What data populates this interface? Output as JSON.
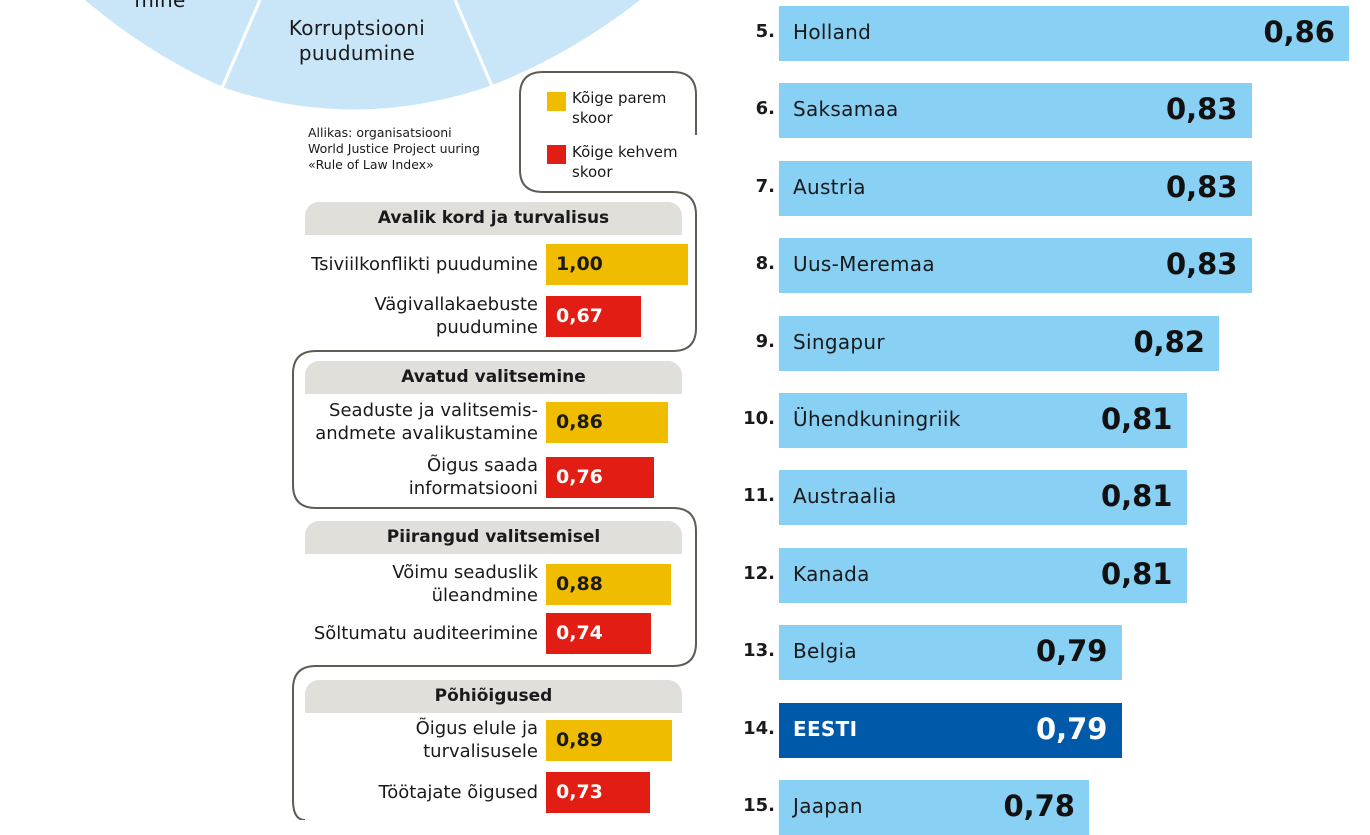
{
  "wheel": {
    "labels": [
      "mine",
      "Korruptsiooni\npuudumine"
    ],
    "fill": "#c9e6f8",
    "line": "#ffffff"
  },
  "source": "Allikas: organisatsiooni\nWorld Justice Project uuring\n«Rule of Law Index»",
  "legend": {
    "best": {
      "label": "Kõige parem\nskoor",
      "color": "#f0bc00"
    },
    "worst": {
      "label": "Kõige kehvem\nskoor",
      "color": "#e21d13"
    }
  },
  "colors": {
    "country_bar": "#88d0f4",
    "highlight_bar": "#0059a9",
    "outline": "#5f5b55"
  },
  "chart_data": [
    {
      "type": "bar",
      "orientation": "horizontal",
      "groups": [
        {
          "name": "Avalik kord ja turvalisus",
          "factors": [
            {
              "label": "Tsiviilkonflikti puudumine",
              "value": 1.0,
              "display": "1,00",
              "kind": "best"
            },
            {
              "label": "Vägivallakaebuste\npuudumine",
              "value": 0.67,
              "display": "0,67",
              "kind": "worst"
            }
          ]
        },
        {
          "name": "Avatud valitsemine",
          "factors": [
            {
              "label": "Seaduste ja valitsemis-\nandmete avalikustamine",
              "value": 0.86,
              "display": "0,86",
              "kind": "best"
            },
            {
              "label": "Õigus saada\ninformatsiooni",
              "value": 0.76,
              "display": "0,76",
              "kind": "worst"
            }
          ]
        },
        {
          "name": "Piirangud valitsemisel",
          "factors": [
            {
              "label": "Võimu seaduslik\nüleandmine",
              "value": 0.88,
              "display": "0,88",
              "kind": "best"
            },
            {
              "label": "Sõltumatu auditeerimine",
              "value": 0.74,
              "display": "0,74",
              "kind": "worst"
            }
          ]
        },
        {
          "name": "Põhiõigused",
          "factors": [
            {
              "label": "Õigus elule ja\nturvalisusele",
              "value": 0.89,
              "display": "0,89",
              "kind": "best"
            },
            {
              "label": "Töötajate õigused",
              "value": 0.73,
              "display": "0,73",
              "kind": "worst"
            }
          ]
        }
      ]
    },
    {
      "type": "bar",
      "orientation": "horizontal",
      "categories": [
        "Holland",
        "Saksamaa",
        "Austria",
        "Uus-Meremaa",
        "Singapur",
        "Ühendkuningriik",
        "Austraalia",
        "Kanada",
        "Belgia",
        "EESTI",
        "Jaapan"
      ],
      "ranks": [
        "5.",
        "6.",
        "7.",
        "8.",
        "9.",
        "10.",
        "11.",
        "12.",
        "13.",
        "14.",
        "15."
      ],
      "values": [
        0.86,
        0.83,
        0.83,
        0.83,
        0.82,
        0.81,
        0.81,
        0.81,
        0.79,
        0.79,
        0.78
      ],
      "value_labels": [
        "0,86",
        "0,83",
        "0,83",
        "0,83",
        "0,82",
        "0,81",
        "0,81",
        "0,81",
        "0,79",
        "0,79",
        "0,78"
      ],
      "highlight": "EESTI"
    }
  ]
}
